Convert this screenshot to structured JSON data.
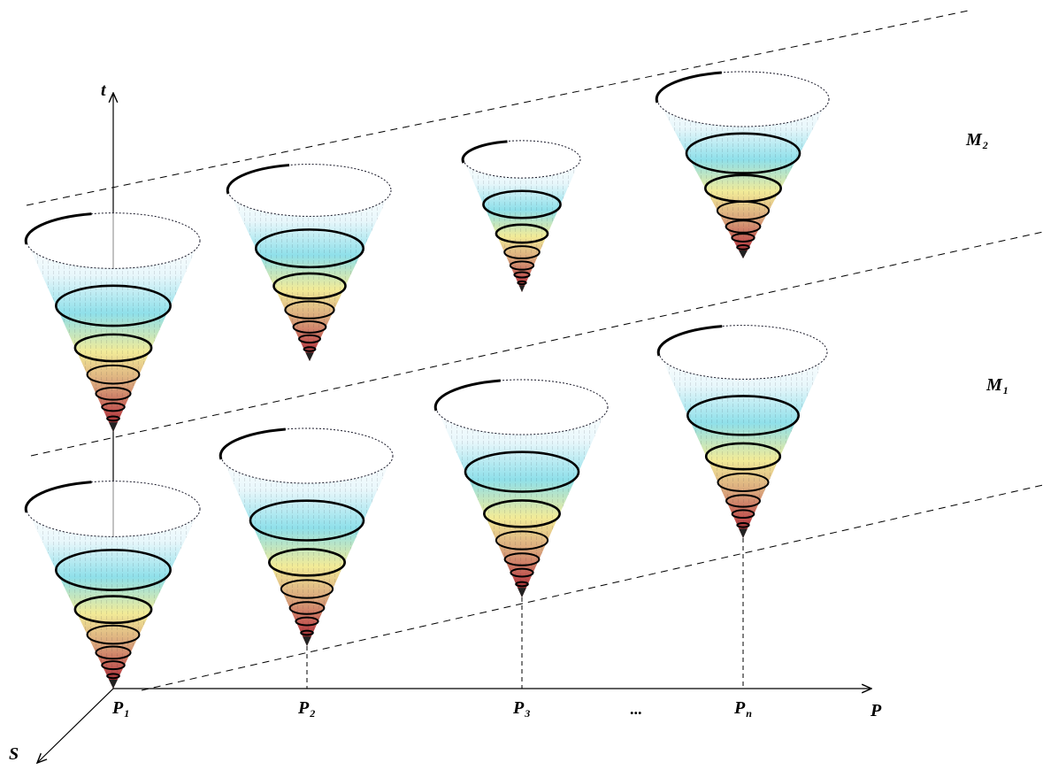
{
  "axes": {
    "t": "t",
    "p": "P",
    "s": "S"
  },
  "points": [
    {
      "base": "P",
      "sub": "1"
    },
    {
      "base": "P",
      "sub": "2"
    },
    {
      "base": "P",
      "sub": "3"
    },
    {
      "base": "P",
      "sub": "n"
    }
  ],
  "ellipsis": "...",
  "levels": [
    {
      "base": "M",
      "sub": "1"
    },
    {
      "base": "M",
      "sub": "2"
    }
  ],
  "colors": {
    "cone_top": "#1a1a2a",
    "cone_upper": "#8fe0ea",
    "cone_middle": "#f2eb98",
    "cone_lower": "#c48a78",
    "cone_tip": "#8a1418",
    "ring": "#000000"
  }
}
